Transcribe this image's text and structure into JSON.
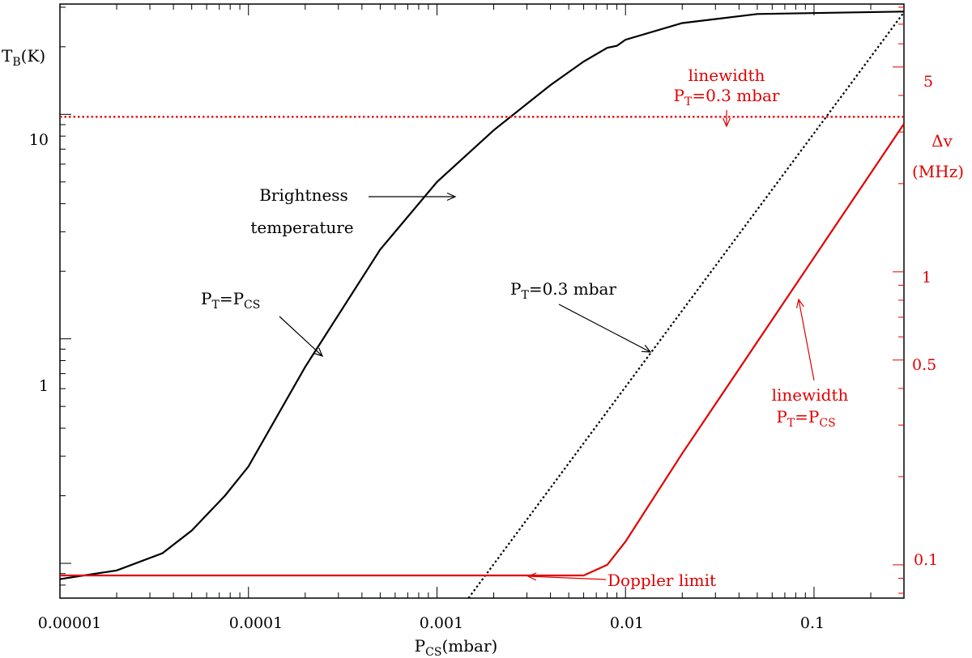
{
  "chart_data": {
    "type": "line",
    "title": "",
    "x_axis": {
      "label_main": "P",
      "label_sub": "CS",
      "label_unit": "(mbar)",
      "scale": "log",
      "range": [
        1e-05,
        0.3
      ],
      "tick_labels": [
        "0.00001",
        "0.0001",
        "0.001",
        "0.01",
        "0.1"
      ],
      "tick_values": [
        1e-05,
        0.0001,
        0.001,
        0.01,
        0.1
      ]
    },
    "y_axis_left": {
      "label_main": "T",
      "label_sub": "B",
      "label_unit": "(K)",
      "scale": "log",
      "range": [
        0.07,
        31
      ],
      "tick_labels": [
        "1",
        "10"
      ],
      "tick_values": [
        1,
        10
      ]
    },
    "y_axis_right": {
      "label_line1": "Δv",
      "label_line2": "(MHz)",
      "scale": "log",
      "range": [
        0.077,
        8.2
      ],
      "color": "#e00000",
      "tick_labels": [
        "0.1",
        "0.5",
        "1",
        "5"
      ],
      "tick_values": [
        0.1,
        0.5,
        1,
        5
      ]
    },
    "series": [
      {
        "axis": "left",
        "color": "#000000",
        "style": "solid",
        "x": [
          1e-05,
          2e-05,
          3.5e-05,
          5e-05,
          7.5e-05,
          0.0001,
          0.0002,
          0.0005,
          0.001,
          0.002,
          0.004,
          0.006,
          0.008,
          0.009,
          0.01,
          0.02,
          0.05,
          0.3
        ],
        "y": [
          0.085,
          0.093,
          0.111,
          0.14,
          0.2,
          0.27,
          0.75,
          2.5,
          5.0,
          8.5,
          13.5,
          17.2,
          19.8,
          20.2,
          21.5,
          25.5,
          28.0,
          28.7
        ]
      },
      {
        "axis": "left",
        "color": "#000000",
        "style": "dotted",
        "x": [
          0.00147,
          0.3
        ],
        "y": [
          0.07,
          28.5
        ]
      },
      {
        "axis": "right",
        "color": "#e00000",
        "style": "dotted",
        "x": [
          1e-05,
          0.3
        ],
        "y": [
          3.38,
          3.38
        ]
      },
      {
        "axis": "right",
        "color": "#e00000",
        "style": "solid",
        "x": [
          1e-05,
          0.006,
          0.008,
          0.01,
          0.02,
          0.3
        ],
        "y": [
          0.092,
          0.092,
          0.1,
          0.12,
          0.24,
          3.2
        ]
      }
    ],
    "annotations": {
      "brightness_line1": "Brightness",
      "brightness_line2": "temperature",
      "pt_pcs_main": "P",
      "pt_pcs_sub1": "T",
      "pt_pcs_eq": "=P",
      "pt_pcs_sub2": "CS",
      "pt03_main": "P",
      "pt03_sub": "T",
      "pt03_rest": "=0.3  mbar",
      "lw03_line1": "linewidth",
      "lw03_main": "P",
      "lw03_sub": "T",
      "lw03_rest": "=0.3  mbar",
      "lwpcs_line1": "linewidth",
      "lwpcs_main": "P",
      "lwpcs_sub1": "T",
      "lwpcs_eq": "=P",
      "lwpcs_sub2": "CS",
      "doppler": "Doppler  limit"
    },
    "grid": false,
    "legend": "none"
  }
}
